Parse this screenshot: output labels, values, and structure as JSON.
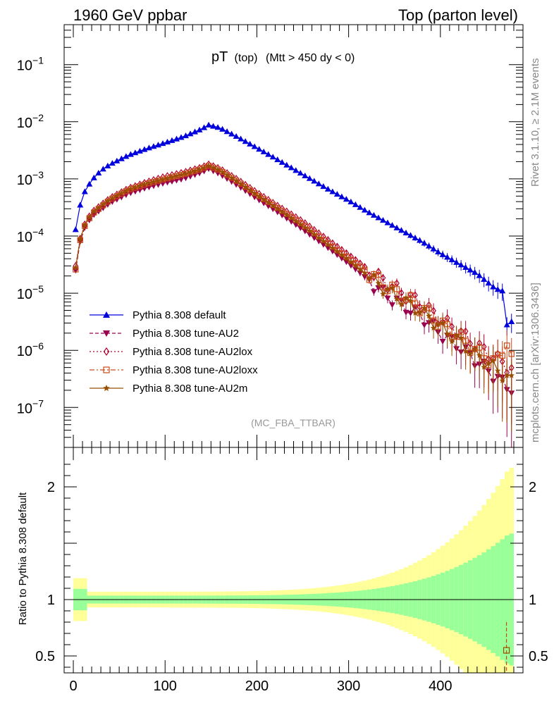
{
  "header": {
    "left": "1960 GeV ppbar",
    "right": "Top (parton level)"
  },
  "side_labels": {
    "rivet": "Rivet 3.1.10, ≥ 2.1M events",
    "mcplots": "mcplots.cern.ch [arXiv:1306.3436]"
  },
  "chart_data": {
    "type": "line",
    "title": "pT (top) (Mtt > 450 dy < 0)",
    "title_parts": {
      "main": "pT",
      "paren": "(top)",
      "cut": "(Mtt > 450 dy < 0)"
    },
    "watermark": "(MC_FBA_TTBAR)",
    "x_range": [
      -10,
      490
    ],
    "y_scale": "log",
    "y_range": [
      2e-08,
      0.5
    ],
    "y_tick_labels": [
      "10^-1",
      "10^-2",
      "10^-3",
      "10^-4",
      "10^-5",
      "10^-6",
      "10^-7"
    ],
    "y_tick_values": [
      0.1,
      0.01,
      0.001,
      0.0001,
      1e-05,
      1e-06,
      1e-07
    ],
    "x_tick_labels": [
      "0",
      "100",
      "200",
      "300",
      "400"
    ],
    "x_tick_values": [
      0,
      100,
      200,
      300,
      400
    ],
    "ratio": {
      "ylabel": "Ratio to Pythia 8.308 default",
      "y_range": [
        0.35,
        2.35
      ],
      "y_tick_labels": [
        "0.5",
        "1",
        "2"
      ],
      "y_tick_values": [
        0.5,
        1,
        2
      ],
      "band_inner_color": "#99ff99",
      "band_outer_color": "#ffff99",
      "visible_ratio_point": {
        "x": 472,
        "y": 0.55
      }
    },
    "series": [
      {
        "name": "Pythia 8.308 default",
        "color": "#0000dd",
        "marker": "triangle-up",
        "style": "solid"
      },
      {
        "name": "Pythia 8.308 tune-AU2",
        "color": "#99004d",
        "marker": "triangle-down",
        "style": "dashed"
      },
      {
        "name": "Pythia 8.308 tune-AU2lox",
        "color": "#b3002d",
        "marker": "diamond-open",
        "style": "dotted"
      },
      {
        "name": "Pythia 8.308 tune-AU2loxx",
        "color": "#cc4d1a",
        "marker": "square-open",
        "style": "dashdot"
      },
      {
        "name": "Pythia 8.308 tune-AU2m",
        "color": "#994d00",
        "marker": "star",
        "style": "solid"
      }
    ],
    "shape_points": {
      "default": {
        "x": [
          2.5,
          7.5,
          12.5,
          20,
          30,
          40,
          60,
          80,
          100,
          120,
          140,
          147.5,
          160,
          180,
          200,
          220,
          250,
          280,
          300,
          320,
          340,
          360,
          380,
          400,
          420,
          440,
          460,
          467.5,
          472.5,
          480
        ],
        "y": [
          0.00013,
          0.00035,
          0.0006,
          0.00095,
          0.0014,
          0.0018,
          0.0026,
          0.0034,
          0.0043,
          0.0055,
          0.0075,
          0.0088,
          0.0078,
          0.0053,
          0.0035,
          0.0023,
          0.0012,
          0.00063,
          0.00042,
          0.00027,
          0.00018,
          0.00012,
          8e-05,
          5e-05,
          3.3e-05,
          2.2e-05,
          1.2e-05,
          1.1e-05,
          2.8e-06,
          3.4e-06
        ]
      },
      "au2": {
        "x": [
          2.5,
          7.5,
          12.5,
          20,
          40,
          60,
          80,
          100,
          120,
          140,
          147.5,
          160,
          180,
          200,
          220,
          250,
          280,
          300,
          320,
          340,
          360,
          380,
          400,
          420,
          440,
          460,
          475
        ],
        "y": [
          2.5e-05,
          8e-05,
          0.00014,
          0.00022,
          0.00038,
          0.00055,
          0.0007,
          0.00085,
          0.001,
          0.0013,
          0.0015,
          0.0012,
          0.00075,
          0.00045,
          0.00028,
          0.00013,
          5.8e-05,
          3.3e-05,
          1.8e-05,
          9.5e-06,
          6e-06,
          4e-06,
          2e-06,
          1.2e-06,
          6.5e-07,
          3.5e-07,
          2.2e-07
        ]
      },
      "au2lox": {
        "x": [
          2.5,
          7.5,
          12.5,
          20,
          40,
          60,
          80,
          100,
          120,
          140,
          147.5,
          160,
          180,
          200,
          220,
          250,
          280,
          300,
          320,
          340,
          360,
          380,
          400,
          420,
          440,
          460,
          480
        ],
        "y": [
          3e-05,
          9e-05,
          0.00016,
          0.00026,
          0.00046,
          0.00068,
          0.00088,
          0.0011,
          0.0013,
          0.0016,
          0.0018,
          0.0015,
          0.00095,
          0.00058,
          0.00036,
          0.00018,
          8e-05,
          4.7e-05,
          2.7e-05,
          1.6e-05,
          1e-05,
          6.5e-06,
          3.5e-06,
          2.2e-06,
          1.2e-06,
          7.5e-07,
          4.5e-07
        ]
      },
      "au2loxx": {
        "x": [
          2.5,
          7.5,
          12.5,
          20,
          40,
          60,
          80,
          100,
          120,
          140,
          147.5,
          160,
          180,
          200,
          220,
          250,
          280,
          300,
          320,
          340,
          360,
          380,
          400,
          420,
          440,
          460,
          472.5,
          480
        ],
        "y": [
          2.6e-05,
          8.5e-05,
          0.00015,
          0.00024,
          0.00043,
          0.00064,
          0.00082,
          0.001,
          0.0012,
          0.0015,
          0.0017,
          0.0014,
          0.00088,
          0.00053,
          0.00033,
          0.00016,
          7e-05,
          4.1e-05,
          2.4e-05,
          1.4e-05,
          8.8e-06,
          5.6e-06,
          3e-06,
          1.8e-06,
          9.5e-07,
          6e-07,
          1.4e-06,
          5e-07
        ]
      },
      "au2m": {
        "x": [
          2.5,
          7.5,
          12.5,
          20,
          40,
          60,
          80,
          100,
          120,
          140,
          147.5,
          160,
          180,
          200,
          220,
          250,
          280,
          300,
          320,
          340,
          360,
          380,
          400,
          420,
          440,
          460,
          475
        ],
        "y": [
          2.8e-05,
          8.8e-05,
          0.000155,
          0.00025,
          0.00044,
          0.00065,
          0.00083,
          0.001,
          0.0012,
          0.0015,
          0.0017,
          0.0014,
          0.00087,
          0.00052,
          0.00032,
          0.00015,
          6.6e-05,
          3.8e-05,
          2.1e-05,
          1.2e-05,
          7.5e-06,
          4.8e-06,
          2.6e-06,
          1.5e-06,
          8e-07,
          5e-07,
          3e-07
        ]
      }
    }
  }
}
